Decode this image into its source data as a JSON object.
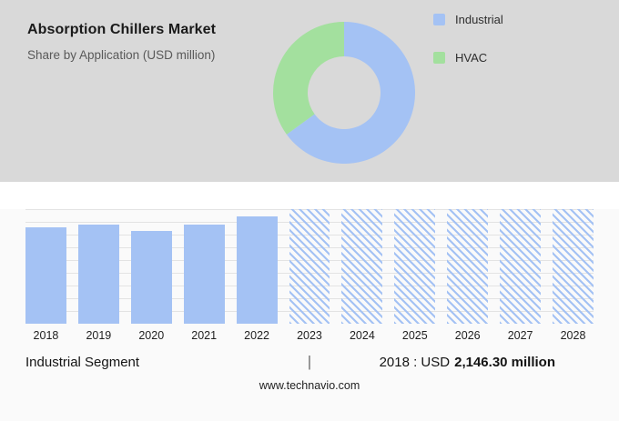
{
  "header": {
    "title": "Absorption Chillers Market",
    "subtitle": "Share by Application (USD million)"
  },
  "legend": [
    {
      "label": "Industrial",
      "color": "#a4c2f4"
    },
    {
      "label": "HVAC",
      "color": "#a3e09e"
    }
  ],
  "colors": {
    "top_panel_background": "#d9d9d9",
    "bottom_panel_background": "#fafafa",
    "bar_blue": "#a4c2f4",
    "gridline": "#e3e3e3"
  },
  "chart_data": [
    {
      "type": "pie",
      "donut": true,
      "title": "Share by Application (USD million)",
      "legend_position": "right",
      "slices": [
        {
          "label": "Industrial",
          "percent": 65,
          "color": "#a4c2f4"
        },
        {
          "label": "HVAC",
          "percent": 35,
          "color": "#a3e09e"
        }
      ]
    },
    {
      "type": "bar",
      "title": "Industrial Segment (USD million)",
      "categories": [
        "2018",
        "2019",
        "2020",
        "2021",
        "2022",
        "2023",
        "2024",
        "2025",
        "2026",
        "2027",
        "2028"
      ],
      "series": [
        {
          "name": "Industrial",
          "values": [
            2146.3,
            2215,
            2060,
            2210,
            2390,
            2550,
            2550,
            2550,
            2550,
            2550,
            2550
          ]
        }
      ],
      "actual_years": [
        "2018",
        "2019",
        "2020",
        "2021",
        "2022"
      ],
      "forecast_years": [
        "2023",
        "2024",
        "2025",
        "2026",
        "2027",
        "2028"
      ],
      "xlabel": "",
      "ylabel": "",
      "ylim": [
        0,
        2550
      ],
      "grid": true,
      "bar_color": "#a4c2f4",
      "forecast_style": "diagonal-hatch"
    }
  ],
  "footer": {
    "segment_label": "Industrial Segment",
    "separator": "|",
    "value_prefix": "2018 : USD",
    "value_bold": "2,146.30 million",
    "website": "www.technavio.com"
  }
}
